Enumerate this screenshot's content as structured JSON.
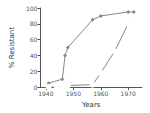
{
  "chart_data": {
    "type": "line",
    "xlabel": "Years",
    "ylabel": "% Resistant",
    "series": [
      {
        "x": [
          1941,
          1946,
          1947,
          1948,
          1957,
          1960,
          1970,
          1972
        ],
        "values": [
          5,
          10,
          40,
          50,
          85,
          90,
          95,
          95
        ],
        "color": "#888888",
        "marker": "diamond"
      },
      {
        "x": [
          1941,
          1944,
          1946,
          1947,
          1948,
          1957,
          1960,
          1965,
          1970,
          1972
        ],
        "values": [
          0,
          0,
          0,
          0,
          2,
          3,
          18,
          45,
          80,
          83
        ],
        "color": "#888888",
        "marker": "open_circle"
      }
    ],
    "xlim": [
      1938,
      1975
    ],
    "xticks": [
      1940,
      1950,
      1960,
      1970
    ],
    "ylim": [
      0,
      100
    ],
    "yticks": [
      0,
      20,
      40,
      60,
      80,
      100
    ],
    "grid": false
  }
}
